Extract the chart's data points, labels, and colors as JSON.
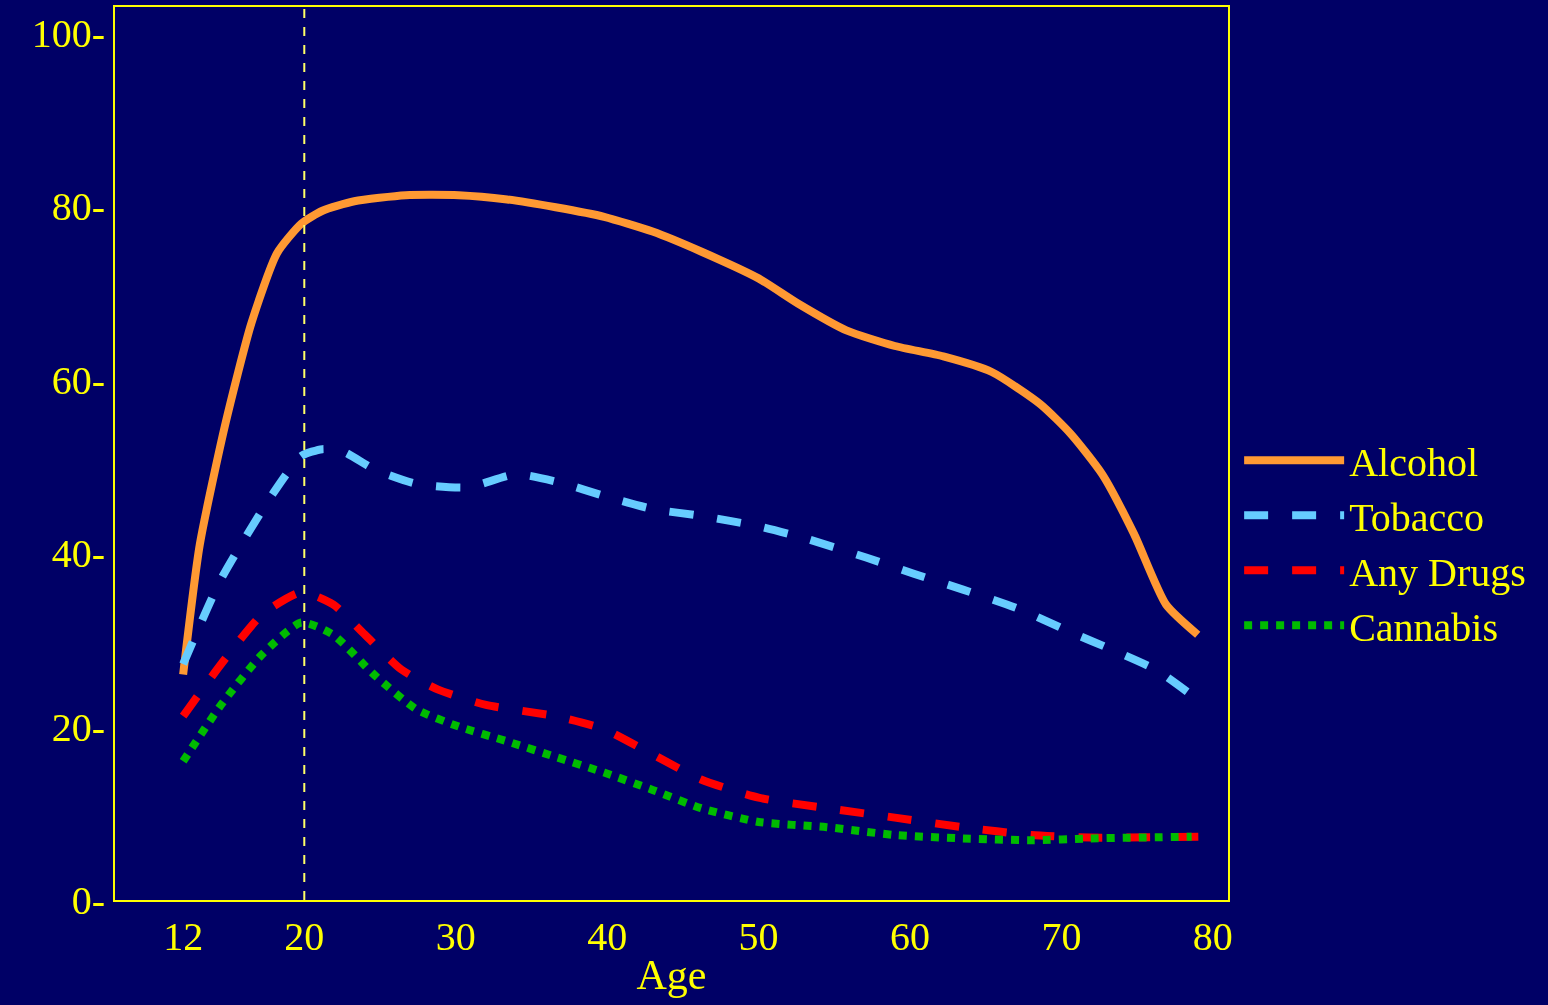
{
  "chart_data": {
    "type": "line",
    "xlabel": "Age",
    "xlim": [
      7.5,
      81
    ],
    "ylim": [
      0,
      103
    ],
    "xticks": [
      12,
      20,
      30,
      40,
      50,
      60,
      70,
      80
    ],
    "yticks": [
      {
        "value": 0,
        "label": "0-"
      },
      {
        "value": 20,
        "label": "20-"
      },
      {
        "value": 40,
        "label": "40-"
      },
      {
        "value": 60,
        "label": "60-"
      },
      {
        "value": 80,
        "label": "80-"
      },
      {
        "value": 100,
        "label": "100-"
      }
    ],
    "grid": false,
    "legend": "right",
    "marker": "none",
    "ref_lines": [
      {
        "axis": "x",
        "value": 20,
        "color": "#ffff66",
        "line_style": "dashed"
      }
    ],
    "series": [
      {
        "name": "Alcohol",
        "color": "#ff9933",
        "line_style": "solid",
        "x": [
          12,
          13.1,
          14.8,
          16.5,
          18.2,
          19.8,
          21.2,
          23.3,
          26.7,
          30.2,
          33.4,
          36.6,
          39.8,
          43,
          46.2,
          50,
          52.6,
          55.8,
          59,
          62.2,
          65.4,
          68.6,
          70.6,
          72.7,
          74.8,
          76.9,
          79
        ],
        "values": [
          26,
          41,
          55,
          66.5,
          74.6,
          78,
          79.5,
          80.6,
          81.3,
          81.3,
          80.8,
          79.9,
          78.8,
          77.1,
          74.8,
          71.7,
          68.8,
          65.7,
          63.9,
          62.7,
          60.9,
          57.2,
          53.8,
          49.1,
          42.2,
          34.1,
          30.6
        ]
      },
      {
        "name": "Tobacco",
        "color": "#66ccff",
        "line_style": "dashed",
        "x": [
          12,
          14.5,
          17.9,
          19.8,
          21.2,
          22.6,
          24.6,
          27.4,
          30.8,
          34,
          37.2,
          39.8,
          43,
          46.2,
          50,
          53.3,
          57.1,
          60.3,
          63.5,
          67.3,
          70.6,
          73.3,
          76.2,
          78.7
        ],
        "values": [
          27.2,
          37,
          46.8,
          51.2,
          52,
          51.7,
          49.7,
          48,
          47.6,
          49.1,
          48,
          46.6,
          45.1,
          44.3,
          43.1,
          41.6,
          39.5,
          37.6,
          35.8,
          33.5,
          30.9,
          28.9,
          26.6,
          23.5
        ]
      },
      {
        "name": "Any Drugs",
        "color": "#ff0000",
        "line_style": "dashed",
        "x": [
          12,
          14.5,
          17.2,
          19.8,
          21.9,
          24,
          26.4,
          28.8,
          32,
          36.6,
          39.8,
          43,
          46.2,
          50,
          54.5,
          59,
          63.5,
          68,
          71.9,
          79.2
        ],
        "values": [
          21.2,
          27.2,
          32.9,
          35.5,
          34.1,
          30.6,
          26.6,
          24.3,
          22.5,
          21.2,
          19.7,
          16.8,
          13.9,
          11.8,
          10.6,
          9.5,
          8.4,
          7.5,
          7.2,
          7.3
        ]
      },
      {
        "name": "Cannabis",
        "color": "#00bb00",
        "line_style": "dotted",
        "x": [
          12,
          14.5,
          17.2,
          19.8,
          21.9,
          24.6,
          27.4,
          30.2,
          33.4,
          36.6,
          39.8,
          43,
          46.2,
          50,
          54.5,
          59,
          63.5,
          68,
          71.9,
          78.6
        ],
        "values": [
          16,
          22.5,
          28.3,
          32,
          30.6,
          26,
          22,
          20,
          18.3,
          16.5,
          14.7,
          12.7,
          10.6,
          9,
          8.4,
          7.5,
          7.1,
          6.9,
          7.1,
          7.3
        ]
      }
    ]
  }
}
